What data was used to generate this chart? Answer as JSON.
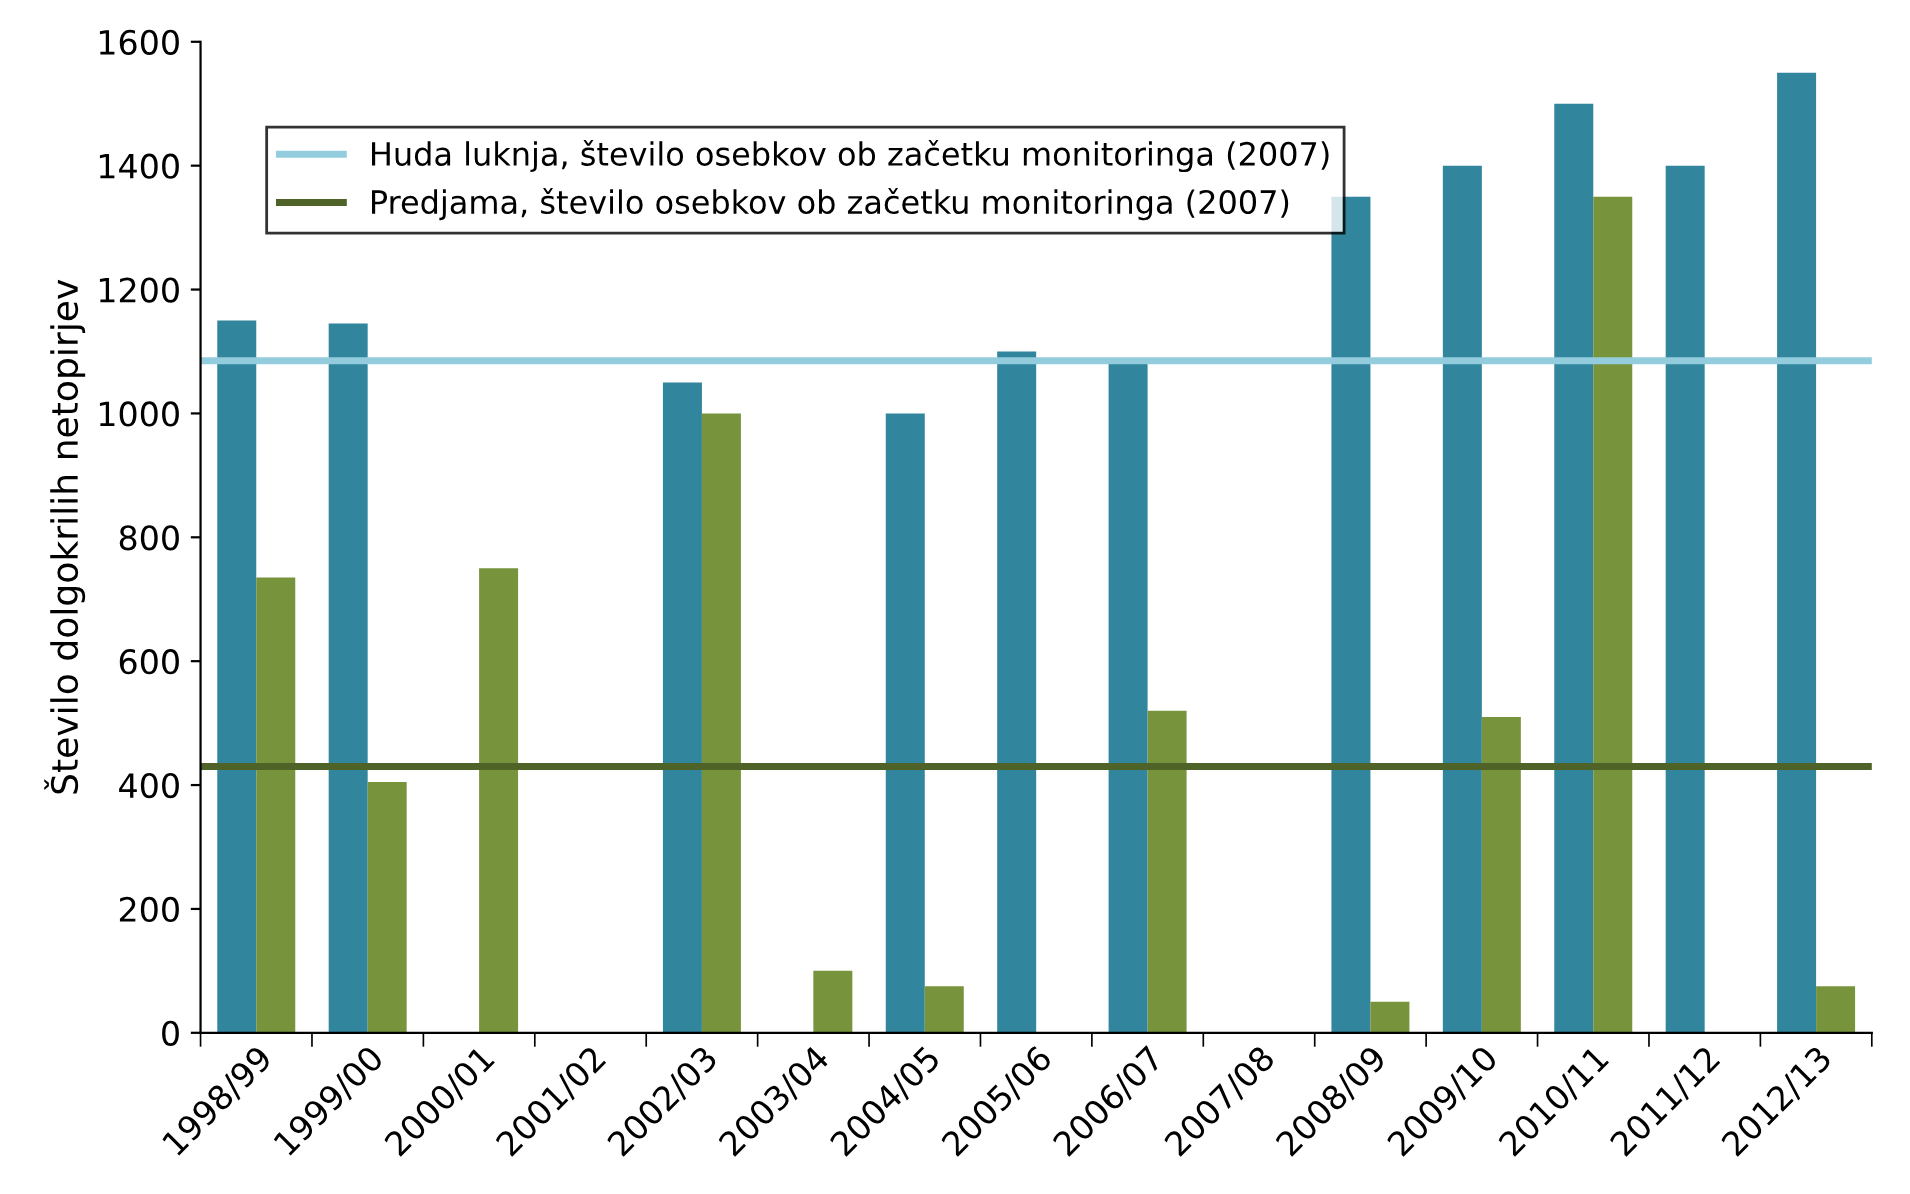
{
  "chart_data": {
    "type": "bar",
    "ylabel": "Število dolgokrilih netopirjev",
    "categories": [
      "1998/99",
      "1999/00",
      "2000/01",
      "2001/02",
      "2002/03",
      "2003/04",
      "2004/05",
      "2005/06",
      "2006/07",
      "2007/08",
      "2008/09",
      "2009/10",
      "2010/11",
      "2011/12",
      "2012/13"
    ],
    "series": [
      {
        "color": "#31859c",
        "values": [
          1150,
          1145,
          null,
          null,
          1050,
          null,
          1000,
          1100,
          1085,
          null,
          1350,
          1400,
          1500,
          1400,
          1550
        ]
      },
      {
        "color": "#77933c",
        "values": [
          735,
          405,
          750,
          null,
          1000,
          100,
          75,
          null,
          520,
          null,
          50,
          510,
          1350,
          null,
          75
        ]
      }
    ],
    "ref_lines": [
      {
        "axis": "y",
        "value": 1085,
        "label": "Huda luknja, število osebkov ob začetku monitoringa (2007)",
        "color": "#93cddd"
      },
      {
        "axis": "y",
        "value": 430,
        "label": "Predjama, število osebkov ob začetku monitoringa (2007)",
        "color": "#4f6228"
      }
    ],
    "ylim": [
      0,
      1600
    ],
    "yticks": [
      0,
      200,
      400,
      600,
      800,
      1000,
      1200,
      1400,
      1600
    ],
    "grid": false,
    "legend": "top left"
  }
}
